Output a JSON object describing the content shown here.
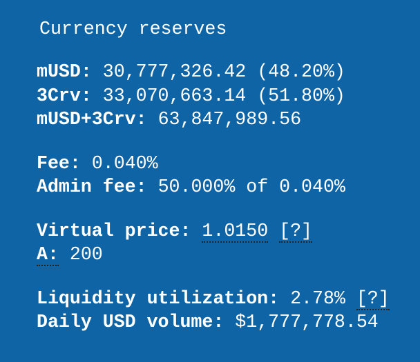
{
  "title": "Currency reserves",
  "groups": [
    {
      "rows": [
        {
          "label": "mUSD:",
          "value": "30,777,326.42 (48.20%)"
        },
        {
          "label": "3Crv:",
          "value": "33,070,663.14 (51.80%)"
        },
        {
          "label": "mUSD+3Crv:",
          "value": "63,847,989.56"
        }
      ]
    },
    {
      "rows": [
        {
          "label": "Fee:",
          "value": "0.040%"
        },
        {
          "label": "Admin fee:",
          "value": "50.000% of 0.040%"
        }
      ]
    },
    {
      "rows": [
        {
          "label": "Virtual price:",
          "value": "1.0150",
          "hint": "[?]"
        },
        {
          "label": "A:",
          "value": "200"
        }
      ]
    },
    {
      "rows": [
        {
          "label": "Liquidity utilization:",
          "value": "2.78%",
          "hint": "[?]"
        },
        {
          "label": "Daily USD volume:",
          "value": "$1,777,778.54"
        }
      ]
    }
  ]
}
